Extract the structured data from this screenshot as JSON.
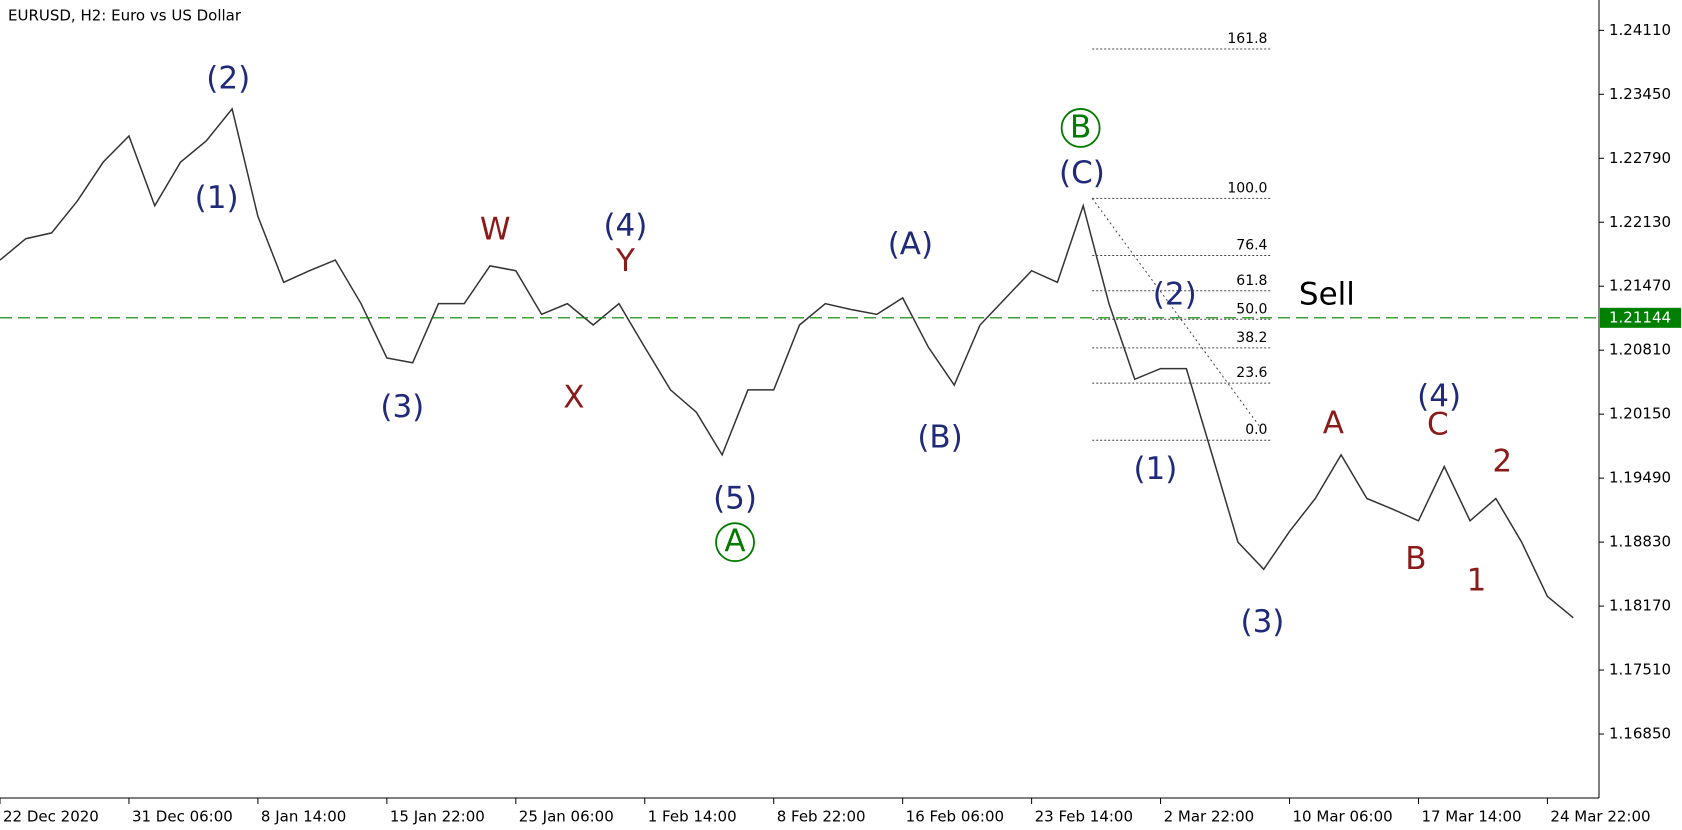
{
  "chart_data": {
    "type": "line",
    "title": "EURUSD, H2:  Euro vs US Dollar",
    "xlim": [
      0,
      124
    ],
    "xticks": [
      {
        "value": 0,
        "label": "22 Dec 2020"
      },
      {
        "value": 10,
        "label": "31 Dec 06:00"
      },
      {
        "value": 20,
        "label": "8 Jan 14:00"
      },
      {
        "value": 30,
        "label": "15 Jan 22:00"
      },
      {
        "value": 40,
        "label": "25 Jan 06:00"
      },
      {
        "value": 50,
        "label": "1 Feb 14:00"
      },
      {
        "value": 60,
        "label": "8 Feb 22:00"
      },
      {
        "value": 70,
        "label": "16 Feb 06:00"
      },
      {
        "value": 80,
        "label": "23 Feb 14:00"
      },
      {
        "value": 90,
        "label": "2 Mar 22:00"
      },
      {
        "value": 100,
        "label": "10 Mar 06:00"
      },
      {
        "value": 110,
        "label": "17 Mar 14:00"
      },
      {
        "value": 120,
        "label": "24 Mar 22:00"
      }
    ],
    "ylim": [
      1.1619,
      1.24423
    ],
    "yticks": [
      {
        "value": 1.2411,
        "label": "1.24110"
      },
      {
        "value": 1.2345,
        "label": "1.23450"
      },
      {
        "value": 1.2279,
        "label": "1.22790"
      },
      {
        "value": 1.2213,
        "label": "1.22130"
      },
      {
        "value": 1.2147,
        "label": "1.21470"
      },
      {
        "value": 1.2081,
        "label": "1.20810"
      },
      {
        "value": 1.2015,
        "label": "1.20150"
      },
      {
        "value": 1.1949,
        "label": "1.19490"
      },
      {
        "value": 1.1883,
        "label": "1.18830"
      },
      {
        "value": 1.1817,
        "label": "1.18170"
      },
      {
        "value": 1.1751,
        "label": "1.17510"
      },
      {
        "value": 1.1685,
        "label": "1.16850"
      }
    ],
    "grid": false,
    "x": [
      0,
      2,
      4,
      6,
      8,
      10,
      12,
      14,
      16,
      18,
      20,
      22,
      24,
      26,
      28,
      30,
      32,
      34,
      36,
      38,
      40,
      42,
      44,
      46,
      48,
      50,
      52,
      54,
      56,
      58,
      60,
      62,
      64,
      66,
      68,
      70,
      72,
      74,
      76,
      78,
      80,
      82,
      84,
      86,
      88,
      90,
      92,
      94,
      96,
      98,
      100,
      102,
      104,
      106,
      108,
      110,
      112,
      114,
      116,
      118,
      120,
      122
    ],
    "series": [
      {
        "color": "#333333",
        "values": [
          1.2174,
          1.2196,
          1.2202,
          1.2235,
          1.2275,
          1.2302,
          1.223,
          1.2275,
          1.2297,
          1.233,
          1.2219,
          1.2151,
          1.2163,
          1.2174,
          1.2129,
          1.2073,
          1.2068,
          1.2129,
          1.2129,
          1.2168,
          1.2163,
          1.2118,
          1.2129,
          1.2107,
          1.2129,
          1.2084,
          1.204,
          1.2017,
          1.1973,
          1.204,
          1.204,
          1.2107,
          1.2129,
          1.2123,
          1.2118,
          1.2135,
          1.2084,
          1.2045,
          1.2107,
          1.2135,
          1.2163,
          1.2151,
          1.223,
          1.2129,
          1.2051,
          1.2062,
          1.2062,
          1.1973,
          1.1883,
          1.1855,
          1.1894,
          1.1928,
          1.1973,
          1.1928,
          1.1917,
          1.1905,
          1.1961,
          1.1905,
          1.1928,
          1.1883,
          1.1827,
          1.1805
        ]
      }
    ],
    "price_line": {
      "value": 1.21144,
      "color": "#008000"
    },
    "fibonacci": {
      "x_start": 84.7,
      "x_end": 98.6,
      "levels": [
        {
          "label": "161.8",
          "price": 1.23918
        },
        {
          "label": "100.0",
          "price": 1.22376
        },
        {
          "label": "76.4",
          "price": 1.21787
        },
        {
          "label": "61.8",
          "price": 1.21423
        },
        {
          "label": "50.0",
          "price": 1.21129
        },
        {
          "label": "38.2",
          "price": 1.20834
        },
        {
          "label": "23.6",
          "price": 1.2047
        },
        {
          "label": "0.0",
          "price": 1.19881
        }
      ]
    },
    "annotations": [
      {
        "text": "(2)",
        "x": 17.7,
        "y": 1.23606,
        "color": "#1f2a7a"
      },
      {
        "text": "(1)",
        "x": 16.8,
        "y": 1.22376,
        "color": "#1f2a7a"
      },
      {
        "text": "(3)",
        "x": 31.2,
        "y": 1.20217,
        "color": "#1f2a7a"
      },
      {
        "text": "W",
        "x": 38.4,
        "y": 1.22052,
        "color": "#8b1a1a"
      },
      {
        "text": "X",
        "x": 44.5,
        "y": 1.20318,
        "color": "#8b1a1a"
      },
      {
        "text": "(4)",
        "x": 48.5,
        "y": 1.22085,
        "color": "#1f2a7a"
      },
      {
        "text": "Y",
        "x": 48.5,
        "y": 1.21727,
        "color": "#8b1a1a"
      },
      {
        "text": "(5)",
        "x": 57.0,
        "y": 1.19277,
        "color": "#1f2a7a"
      },
      {
        "text": "A",
        "x": 57.0,
        "y": 1.18829,
        "color": "#007a00",
        "circled": true
      },
      {
        "text": "(A)",
        "x": 70.6,
        "y": 1.21895,
        "color": "#1f2a7a"
      },
      {
        "text": "(B)",
        "x": 72.9,
        "y": 1.19904,
        "color": "#1f2a7a"
      },
      {
        "text": "B",
        "x": 83.8,
        "y": 1.23103,
        "color": "#007a00",
        "circled": true
      },
      {
        "text": "(C)",
        "x": 83.9,
        "y": 1.22633,
        "color": "#1f2a7a"
      },
      {
        "text": "(2)",
        "x": 91.1,
        "y": 1.2138,
        "color": "#1f2a7a"
      },
      {
        "text": "(1)",
        "x": 89.6,
        "y": 1.1958,
        "color": "#1f2a7a"
      },
      {
        "text": "Sell",
        "x": 102.9,
        "y": 1.2138,
        "color": "#000000"
      },
      {
        "text": "(3)",
        "x": 97.9,
        "y": 1.18002,
        "color": "#1f2a7a"
      },
      {
        "text": "A",
        "x": 103.4,
        "y": 1.20049,
        "color": "#8b1a1a"
      },
      {
        "text": "(4)",
        "x": 111.6,
        "y": 1.20329,
        "color": "#1f2a7a"
      },
      {
        "text": "C",
        "x": 111.5,
        "y": 1.20038,
        "color": "#8b1a1a"
      },
      {
        "text": "B",
        "x": 109.8,
        "y": 1.18651,
        "color": "#8b1a1a"
      },
      {
        "text": "2",
        "x": 116.5,
        "y": 1.19658,
        "color": "#8b1a1a"
      },
      {
        "text": "1",
        "x": 114.5,
        "y": 1.18427,
        "color": "#8b1a1a"
      }
    ]
  }
}
